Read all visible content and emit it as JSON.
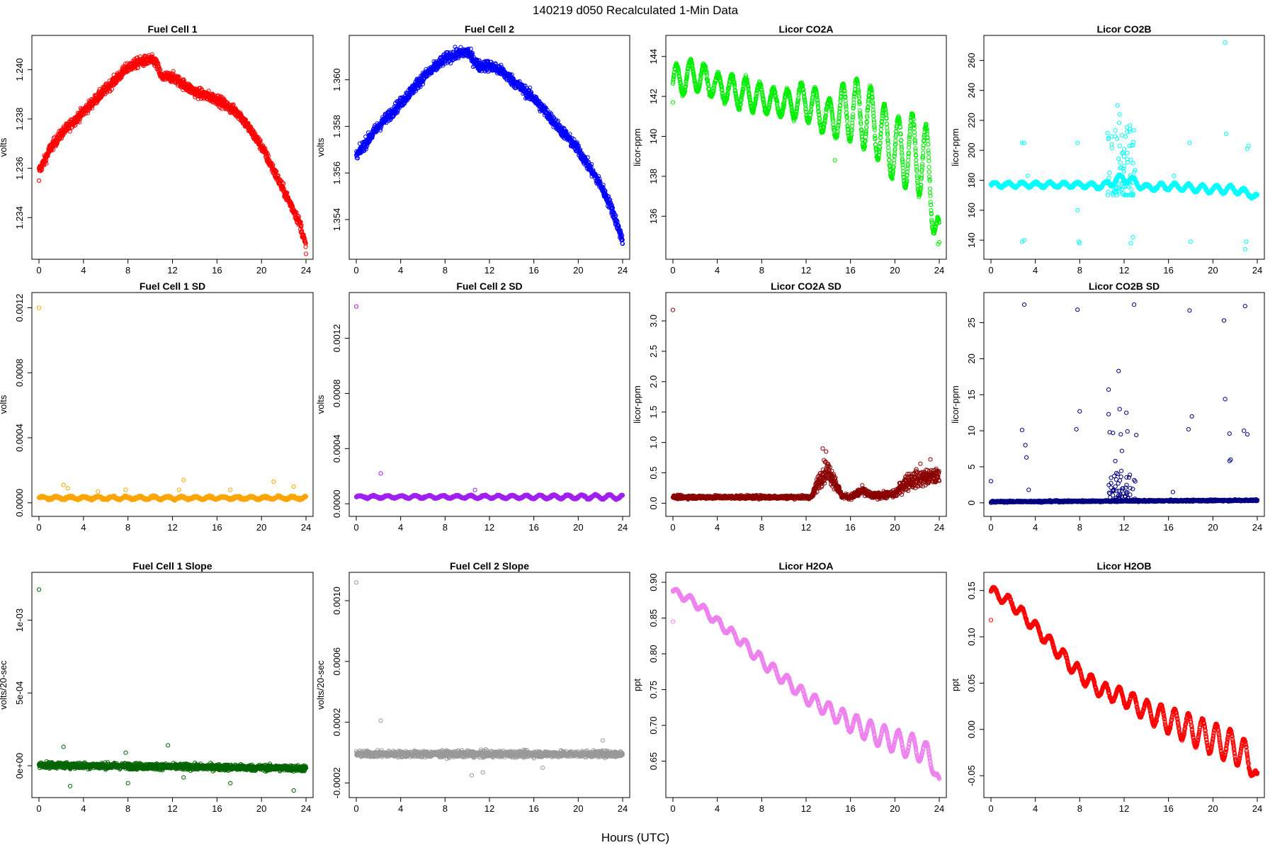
{
  "page": {
    "title": "140219   d050   Recalculated 1-Min Data",
    "x_caption": "Hours (UTC)"
  },
  "chart_data": [
    {
      "id": "fc1",
      "type": "scatter",
      "title": "Fuel Cell 1",
      "ylabel": "volts",
      "color": "#ff0000",
      "xlim": [
        0,
        24
      ],
      "ylim": [
        1.2326,
        1.2411
      ],
      "xticks": [
        0,
        4,
        8,
        12,
        16,
        20,
        24
      ],
      "yticks": [
        1.234,
        1.236,
        1.238,
        1.24
      ],
      "ytick_labels": [
        "1.234",
        "1.236",
        "1.238",
        "1.240"
      ],
      "trend_x": [
        0,
        0.5,
        1,
        2,
        4,
        6,
        8,
        9,
        10,
        10.5,
        11,
        12,
        13,
        14,
        16,
        18,
        20,
        22,
        23,
        23.5,
        24
      ],
      "trend_y": [
        1.2359,
        1.2363,
        1.2368,
        1.2374,
        1.2383,
        1.2392,
        1.2401,
        1.2403,
        1.2404,
        1.2403,
        1.2397,
        1.2397,
        1.2394,
        1.2391,
        1.2388,
        1.2382,
        1.2369,
        1.2351,
        1.2342,
        1.2337,
        1.2328
      ],
      "band": 0.00022,
      "outliers": [
        [
          0,
          1.2355
        ]
      ]
    },
    {
      "id": "fc2",
      "type": "scatter",
      "title": "Fuel Cell 2",
      "ylabel": "volts",
      "color": "#0000ff",
      "xlim": [
        0,
        24
      ],
      "ylim": [
        1.3526,
        1.3616
      ],
      "xticks": [
        0,
        4,
        8,
        12,
        16,
        20,
        24
      ],
      "yticks": [
        1.354,
        1.356,
        1.358,
        1.36
      ],
      "ytick_labels": [
        "1.354",
        "1.356",
        "1.358",
        "1.360"
      ],
      "trend_x": [
        0,
        1,
        2,
        4,
        6,
        8,
        9,
        10,
        10.5,
        11,
        12,
        13,
        14,
        16,
        18,
        20,
        22,
        23,
        24
      ],
      "trend_y": [
        1.3567,
        1.3574,
        1.358,
        1.359,
        1.3601,
        1.3609,
        1.3611,
        1.3612,
        1.3609,
        1.3606,
        1.3606,
        1.3604,
        1.36,
        1.3592,
        1.3581,
        1.357,
        1.3555,
        1.3545,
        1.3531
      ],
      "band": 0.00025,
      "outliers": []
    },
    {
      "id": "co2a",
      "type": "scatter",
      "title": "Licor CO2A",
      "ylabel": "licor-ppm",
      "color": "#00ee00",
      "xlim": [
        0,
        24
      ],
      "ylim": [
        134.2,
        144.7
      ],
      "xticks": [
        0,
        4,
        8,
        12,
        16,
        20,
        24
      ],
      "yticks": [
        136,
        138,
        140,
        142,
        144
      ],
      "ytick_labels": [
        "136",
        "138",
        "140",
        "142",
        "144"
      ],
      "trend_x": [
        0,
        2,
        4,
        6,
        8,
        10,
        12,
        14,
        16,
        18,
        20,
        22,
        23,
        24
      ],
      "trend_y": [
        142.7,
        143.1,
        142.5,
        142.2,
        141.9,
        141.6,
        141.8,
        140.9,
        141.4,
        140.8,
        139.3,
        139.2,
        138.4,
        134.8
      ],
      "wave_amp": [
        0.8,
        0.8,
        0.6,
        0.8,
        0.7,
        0.6,
        1.0,
        0.9,
        1.6,
        1.6,
        1.6,
        2.0,
        2.0,
        1.0
      ],
      "wave_period": 1.25,
      "band": 0.12,
      "outliers": [
        [
          0,
          141.7
        ],
        [
          14.6,
          138.8
        ],
        [
          23.9,
          134.6
        ],
        [
          24,
          134.7
        ]
      ]
    },
    {
      "id": "co2b",
      "type": "scatter",
      "title": "Licor CO2B",
      "ylabel": "licor-ppm",
      "color": "#00ffff",
      "xlim": [
        0,
        24
      ],
      "ylim": [
        132,
        272
      ],
      "xticks": [
        0,
        4,
        8,
        12,
        16,
        20,
        24
      ],
      "yticks": [
        140,
        160,
        180,
        200,
        220,
        240,
        260
      ],
      "ytick_labels": [
        "140",
        "160",
        "180",
        "200",
        "220",
        "240",
        "260"
      ],
      "trend_x": [
        0,
        4,
        8,
        10,
        12,
        14,
        16,
        20,
        22,
        24
      ],
      "trend_y": [
        177,
        177,
        177,
        176,
        182,
        175,
        176,
        174,
        174,
        169
      ],
      "wave_amp": [
        1.5,
        1.5,
        1.5,
        1.5,
        3,
        2,
        2,
        2.5,
        2.5,
        1.5
      ],
      "wave_period": 1.25,
      "band": 0.8,
      "clusters": [
        {
          "x0": 10.5,
          "x1": 13,
          "y0": 170,
          "y1": 222,
          "n": 90
        }
      ],
      "outliers": [
        [
          2.8,
          205
        ],
        [
          3,
          205
        ],
        [
          2.8,
          139
        ],
        [
          3,
          140
        ],
        [
          3.3,
          183
        ],
        [
          7.8,
          205
        ],
        [
          7.9,
          139
        ],
        [
          8,
          138
        ],
        [
          7.8,
          160
        ],
        [
          11.4,
          230
        ],
        [
          11.6,
          224
        ],
        [
          12.6,
          138
        ],
        [
          12.8,
          142
        ],
        [
          17.9,
          205
        ],
        [
          18,
          139
        ],
        [
          21.1,
          272
        ],
        [
          21.2,
          211
        ],
        [
          22.9,
          134
        ],
        [
          23,
          139
        ],
        [
          23.1,
          201
        ],
        [
          23.2,
          203
        ],
        [
          16.5,
          183
        ],
        [
          11.8,
          210
        ]
      ]
    },
    {
      "id": "fc1sd",
      "type": "scatter",
      "title": "Fuel Cell 1 SD",
      "ylabel": "volts",
      "color": "#ffa500",
      "xlim": [
        0,
        24
      ],
      "ylim": [
        -4e-05,
        0.00125
      ],
      "xticks": [
        0,
        4,
        8,
        12,
        16,
        20,
        24
      ],
      "yticks": [
        0,
        0.0004,
        0.0008,
        0.0012
      ],
      "ytick_labels": [
        "0.0000",
        "0.0004",
        "0.0008",
        "0.0012"
      ],
      "trend_x": [
        0,
        24
      ],
      "trend_y": [
        3e-05,
        3e-05
      ],
      "wave_amp": [
        8e-06,
        8e-06
      ],
      "wave_period": 1.25,
      "band": 7e-06,
      "outliers": [
        [
          0,
          0.0012
        ],
        [
          2.2,
          0.00011
        ],
        [
          2.6,
          9e-05
        ],
        [
          13.0,
          0.00014
        ],
        [
          21.1,
          0.00013
        ],
        [
          22.9,
          0.0001
        ],
        [
          5.3,
          7e-05
        ],
        [
          7.8,
          8e-05
        ],
        [
          17.2,
          8e-05
        ],
        [
          12.6,
          8e-05
        ]
      ]
    },
    {
      "id": "fc2sd",
      "type": "scatter",
      "title": "Fuel Cell 2 SD",
      "ylabel": "volts",
      "color": "#a020f0",
      "xlim": [
        0,
        24
      ],
      "ylim": [
        -4e-05,
        0.00148
      ],
      "xticks": [
        0,
        4,
        8,
        12,
        16,
        20,
        24
      ],
      "yticks": [
        0,
        0.0004,
        0.0008,
        0.0012
      ],
      "ytick_labels": [
        "0.0000",
        "0.0004",
        "0.0008",
        "0.0012"
      ],
      "trend_x": [
        0,
        12,
        24
      ],
      "trend_y": [
        5e-05,
        5e-05,
        5e-05
      ],
      "wave_amp": [
        8e-06,
        1e-05,
        1.6e-05
      ],
      "wave_period": 1.25,
      "band": 6e-06,
      "outliers": [
        [
          0,
          0.00143
        ],
        [
          2.2,
          0.00022
        ],
        [
          10.7,
          0.0001
        ]
      ]
    },
    {
      "id": "co2asd",
      "type": "scatter",
      "title": "Licor CO2A SD",
      "ylabel": "licor-ppm",
      "color": "#8b0000",
      "xlim": [
        0,
        24
      ],
      "ylim": [
        -0.1,
        3.35
      ],
      "xticks": [
        0,
        4,
        8,
        12,
        16,
        20,
        24
      ],
      "yticks": [
        0,
        0.5,
        1.0,
        1.5,
        2.0,
        2.5,
        3.0
      ],
      "ytick_labels": [
        "0.0",
        "0.5",
        "1.0",
        "1.5",
        "2.0",
        "2.5",
        "3.0"
      ],
      "trend_x": [
        0,
        12.5,
        13.2,
        13.8,
        14.5,
        15.2,
        16,
        17,
        18,
        20,
        21,
        22,
        24
      ],
      "trend_y": [
        0.1,
        0.1,
        0.4,
        0.55,
        0.4,
        0.12,
        0.1,
        0.2,
        0.12,
        0.15,
        0.35,
        0.4,
        0.45
      ],
      "band": 0.05,
      "band_growth": [
        0.03,
        0.03,
        0.15,
        0.2,
        0.15,
        0.04,
        0.04,
        0.08,
        0.05,
        0.06,
        0.15,
        0.15,
        0.12
      ],
      "outliers": [
        [
          0,
          3.18
        ],
        [
          13.5,
          0.9
        ],
        [
          13.8,
          0.85
        ],
        [
          23.2,
          0.72
        ],
        [
          22.3,
          0.65
        ]
      ]
    },
    {
      "id": "co2bsd",
      "type": "scatter",
      "title": "Licor CO2B SD",
      "ylabel": "licor-ppm",
      "color": "#000080",
      "xlim": [
        0,
        24
      ],
      "ylim": [
        -0.9,
        28.2
      ],
      "xticks": [
        0,
        4,
        8,
        12,
        16,
        20,
        24
      ],
      "yticks": [
        0,
        5,
        10,
        15,
        20,
        25
      ],
      "ytick_labels": [
        "0",
        "5",
        "10",
        "15",
        "20",
        "25"
      ],
      "trend_x": [
        0,
        24
      ],
      "trend_y": [
        0.15,
        0.35
      ],
      "band": 0.12,
      "clusters": [
        {
          "x0": 10.5,
          "x1": 13,
          "y0": 0.2,
          "y1": 4.5,
          "n": 70
        }
      ],
      "outliers": [
        [
          0,
          3.0
        ],
        [
          2.8,
          10.1
        ],
        [
          3,
          27.5
        ],
        [
          3.1,
          8
        ],
        [
          3.2,
          6.3
        ],
        [
          3.4,
          1.8
        ],
        [
          7.7,
          10.2
        ],
        [
          7.8,
          26.8
        ],
        [
          8,
          12.7
        ],
        [
          10.6,
          15.7
        ],
        [
          10.6,
          12.3
        ],
        [
          10.7,
          9.8
        ],
        [
          11,
          9.7
        ],
        [
          11.2,
          5.8
        ],
        [
          11.5,
          18.3
        ],
        [
          11.6,
          13
        ],
        [
          11.7,
          9.5
        ],
        [
          11.8,
          7.2
        ],
        [
          12.2,
          12.5
        ],
        [
          12.3,
          9.9
        ],
        [
          12.9,
          27.5
        ],
        [
          13.1,
          9.4
        ],
        [
          16.4,
          1.5
        ],
        [
          17.8,
          10.2
        ],
        [
          17.9,
          26.7
        ],
        [
          18.1,
          12
        ],
        [
          21,
          25.3
        ],
        [
          21.1,
          14.4
        ],
        [
          21.5,
          9.6
        ],
        [
          22.8,
          10
        ],
        [
          22.9,
          27.3
        ],
        [
          23.1,
          9.5
        ],
        [
          21.6,
          6
        ],
        [
          21.5,
          5.8
        ]
      ]
    },
    {
      "id": "fc1sl",
      "type": "scatter",
      "title": "Fuel Cell 1 Slope",
      "ylabel": "volts/20-sec",
      "color": "#006400",
      "xlim": [
        0,
        24
      ],
      "ylim": [
        -0.00017,
        0.00128
      ],
      "xticks": [
        0,
        4,
        8,
        12,
        16,
        20,
        24
      ],
      "yticks": [
        0,
        0.0005,
        0.001
      ],
      "ytick_labels": [
        "0e+00",
        "5e-04",
        "1e-03"
      ],
      "trend_x": [
        0,
        24
      ],
      "trend_y": [
        5e-06,
        -1.8e-05
      ],
      "band": 2.2e-05,
      "outliers": [
        [
          0,
          0.00121
        ],
        [
          2.2,
          0.00013
        ],
        [
          2.8,
          -0.00014
        ],
        [
          7.8,
          9e-05
        ],
        [
          11.6,
          0.00014
        ],
        [
          20.9,
          -0.00022
        ],
        [
          22.9,
          -0.00017
        ],
        [
          13,
          -8e-05
        ],
        [
          8,
          -0.00012
        ],
        [
          17.2,
          -0.00012
        ]
      ]
    },
    {
      "id": "fc2sl",
      "type": "scatter",
      "title": "Fuel Cell 2 Slope",
      "ylabel": "volts/20-sec",
      "color": "#999999",
      "xlim": [
        0,
        24
      ],
      "ylim": [
        -0.00025,
        0.00114
      ],
      "xticks": [
        0,
        4,
        8,
        12,
        16,
        20,
        24
      ],
      "yticks": [
        -0.0002,
        0.0002,
        0.0006,
        0.001
      ],
      "ytick_labels": [
        "-0.0002",
        "0.0002",
        "0.0006",
        "0.0010"
      ],
      "trend_x": [
        0,
        24
      ],
      "trend_y": [
        -1e-05,
        -1e-05
      ],
      "band": 2.2e-05,
      "outliers": [
        [
          0,
          0.00112
        ],
        [
          2.2,
          0.00021
        ],
        [
          10.4,
          -0.00015
        ],
        [
          11.4,
          -0.00013
        ],
        [
          16.8,
          -0.0001
        ],
        [
          22.2,
          8e-05
        ]
      ]
    },
    {
      "id": "h2oa",
      "type": "scatter",
      "title": "Licor H2OA",
      "ylabel": "ppt",
      "color": "#ee82ee",
      "xlim": [
        0,
        24
      ],
      "ylim": [
        0.609,
        0.904
      ],
      "xticks": [
        0,
        4,
        8,
        12,
        16,
        20,
        24
      ],
      "yticks": [
        0.65,
        0.7,
        0.75,
        0.8,
        0.85,
        0.9
      ],
      "ytick_labels": [
        "0.65",
        "0.70",
        "0.75",
        "0.80",
        "0.85",
        "0.90"
      ],
      "trend_x": [
        0,
        2,
        4,
        6,
        8,
        10,
        12,
        14,
        16,
        18,
        20,
        22,
        23,
        24
      ],
      "trend_y": [
        0.888,
        0.872,
        0.845,
        0.82,
        0.79,
        0.765,
        0.74,
        0.722,
        0.704,
        0.69,
        0.678,
        0.668,
        0.66,
        0.622
      ],
      "wave_amp": [
        0.004,
        0.006,
        0.006,
        0.007,
        0.008,
        0.008,
        0.009,
        0.01,
        0.013,
        0.015,
        0.016,
        0.017,
        0.014,
        0.004
      ],
      "wave_period": 1.25,
      "band": 0.0015,
      "outliers": [
        [
          0,
          0.845
        ]
      ]
    },
    {
      "id": "h2ob",
      "type": "scatter",
      "title": "Licor H2OB",
      "ylabel": "ppt",
      "color": "#ff0000",
      "xlim": [
        0,
        24
      ],
      "ylim": [
        -0.066,
        0.162
      ],
      "xticks": [
        0,
        4,
        8,
        12,
        16,
        20,
        24
      ],
      "yticks": [
        -0.05,
        0,
        0.05,
        0.1,
        0.15
      ],
      "ytick_labels": [
        "-0.05",
        "0.00",
        "0.05",
        "0.10",
        "0.15"
      ],
      "trend_x": [
        0,
        2,
        4,
        6,
        8,
        10,
        12,
        14,
        16,
        18,
        20,
        22,
        23,
        24
      ],
      "trend_y": [
        0.15,
        0.135,
        0.11,
        0.085,
        0.06,
        0.042,
        0.035,
        0.02,
        0.01,
        0.0,
        -0.01,
        -0.02,
        -0.028,
        -0.052
      ],
      "wave_amp": [
        0.005,
        0.006,
        0.006,
        0.007,
        0.008,
        0.008,
        0.009,
        0.011,
        0.014,
        0.016,
        0.017,
        0.018,
        0.015,
        0.004
      ],
      "wave_period": 1.25,
      "band": 0.0015,
      "outliers": [
        [
          0,
          0.118
        ]
      ]
    }
  ]
}
